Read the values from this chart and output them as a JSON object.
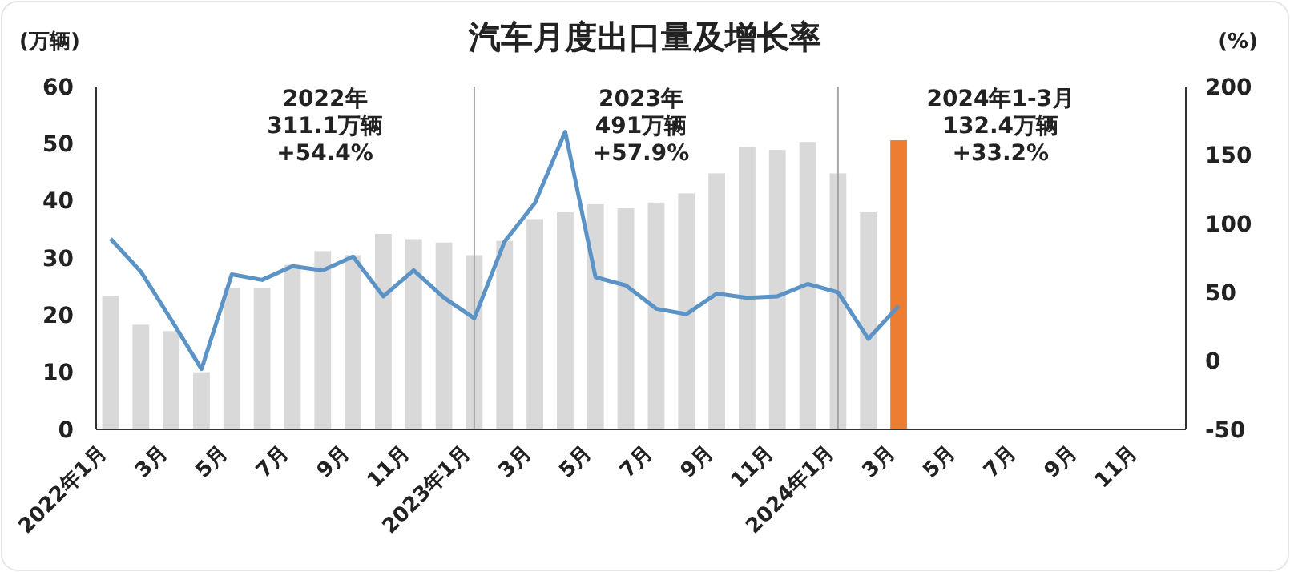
{
  "chart_data": {
    "type": "bar",
    "title": "汽车月度出口量及增长率",
    "ylabel": "(万辆)",
    "y2label": "(%)",
    "categories": [
      "2022年1月",
      null,
      "3月",
      null,
      "5月",
      null,
      "7月",
      null,
      "9月",
      null,
      "11月",
      null,
      "2023年1月",
      null,
      "3月",
      null,
      "5月",
      null,
      "7月",
      null,
      "9月",
      null,
      "11月",
      null,
      "2024年1月",
      null,
      "3月",
      null,
      "5月",
      null,
      "7月",
      null,
      "9月",
      null,
      "11月",
      null
    ],
    "series": [
      {
        "type": "bar",
        "colors": [
          "#d9d9d9",
          "#d9d9d9",
          "#d9d9d9",
          "#d9d9d9",
          "#d9d9d9",
          "#d9d9d9",
          "#d9d9d9",
          "#d9d9d9",
          "#d9d9d9",
          "#d9d9d9",
          "#d9d9d9",
          "#d9d9d9",
          "#d9d9d9",
          "#d9d9d9",
          "#d9d9d9",
          "#d9d9d9",
          "#d9d9d9",
          "#d9d9d9",
          "#d9d9d9",
          "#d9d9d9",
          "#d9d9d9",
          "#d9d9d9",
          "#d9d9d9",
          "#d9d9d9",
          "#d9d9d9",
          "#d9d9d9",
          "#ed7d31",
          "#d9d9d9",
          "#d9d9d9",
          "#d9d9d9",
          "#d9d9d9",
          "#d9d9d9",
          "#d9d9d9",
          "#d9d9d9",
          "#d9d9d9",
          "#d9d9d9"
        ],
        "values": [
          23.4,
          18.3,
          17.2,
          10,
          24.8,
          24.8,
          28.8,
          31.2,
          30.5,
          34.2,
          33.3,
          32.7,
          30.5,
          33,
          36.8,
          38,
          39.4,
          38.7,
          39.7,
          41.3,
          44.8,
          49.4,
          48.9,
          50.3,
          44.8,
          38,
          50.6,
          null,
          null,
          null,
          null,
          null,
          null,
          null,
          null,
          null
        ]
      },
      {
        "type": "line",
        "axis": "y2",
        "color": "#5b93c7",
        "values": [
          89,
          65,
          30,
          -6,
          63,
          59,
          69,
          66,
          76,
          47,
          66,
          46,
          31,
          87,
          115,
          167,
          61,
          55,
          38,
          34,
          49,
          46,
          47,
          56,
          50,
          16,
          40,
          null,
          null,
          null,
          null,
          null,
          null,
          null,
          null,
          null
        ]
      }
    ],
    "ylim": [
      0,
      60
    ],
    "yticks": [
      0,
      10,
      20,
      30,
      40,
      50,
      60
    ],
    "y2lim": [
      -50,
      200
    ],
    "y2ticks": [
      -50,
      0,
      50,
      100,
      150,
      200
    ],
    "ref_lines": [
      {
        "axis": "x",
        "value": "2023年1月",
        "color": "#a6a6a6"
      },
      {
        "axis": "x",
        "value": "2024年1月",
        "color": "#a6a6a6"
      }
    ],
    "annotations": [
      "2022年\n311.1万辆\n+54.4%",
      "2023年\n491万辆\n+57.9%",
      "2024年1-3月\n132.4万辆\n+33.2%"
    ],
    "grid": false,
    "legend": false,
    "marker": "none",
    "line_style": "solid"
  }
}
